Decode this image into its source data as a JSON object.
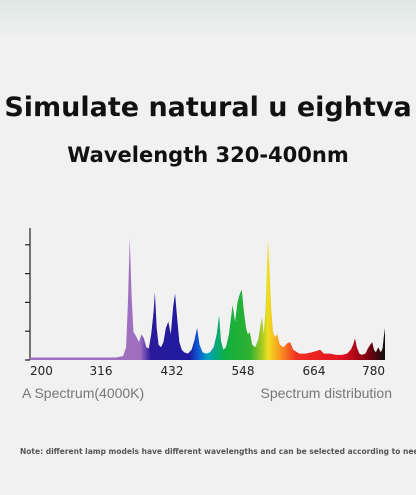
{
  "chart_data": {
    "type": "area",
    "title": "Simulate natural u eightva",
    "subtitle": "Wavelength 320-400nm",
    "caption_left": "A Spectrum(4000K)",
    "caption_right": "Spectrum distribution",
    "note": "Note: different lamp models have different wavelengths and can be selected according to needs",
    "x": [
      200,
      340,
      352,
      357,
      360,
      363,
      366,
      369,
      374,
      378,
      382,
      386,
      390,
      394,
      398,
      402,
      404,
      407,
      410,
      414,
      418,
      422,
      426,
      430,
      434,
      437,
      440,
      444,
      448,
      452,
      458,
      464,
      469,
      473,
      477,
      482,
      488,
      494,
      500,
      505,
      509,
      512,
      516,
      520,
      525,
      531,
      535,
      539,
      543,
      546,
      549,
      553,
      556,
      559,
      563,
      568,
      573,
      577,
      579,
      582,
      585,
      587,
      589,
      591,
      594,
      597,
      600,
      604,
      608,
      614,
      620,
      625,
      630,
      640,
      650,
      660,
      668,
      674,
      680,
      690,
      700,
      710,
      718,
      724,
      728,
      731,
      734,
      738,
      742,
      748,
      752,
      756,
      759,
      762,
      765,
      769,
      773,
      776,
      778,
      780
    ],
    "values": [
      2,
      2,
      3,
      10,
      45,
      95,
      50,
      22,
      18,
      14,
      20,
      17,
      10,
      9,
      20,
      38,
      53,
      25,
      12,
      10,
      14,
      25,
      30,
      20,
      42,
      52,
      35,
      14,
      8,
      6,
      5,
      8,
      16,
      25,
      12,
      6,
      5,
      6,
      10,
      20,
      35,
      15,
      8,
      10,
      20,
      43,
      30,
      45,
      52,
      55,
      40,
      25,
      20,
      22,
      12,
      10,
      16,
      28,
      33,
      20,
      40,
      70,
      94,
      75,
      40,
      22,
      18,
      20,
      12,
      10,
      13,
      14,
      8,
      5,
      5,
      6,
      7,
      8,
      5,
      5,
      4,
      4,
      5,
      8,
      12,
      17,
      10,
      5,
      4,
      5,
      9,
      12,
      14,
      8,
      6,
      10,
      6,
      9,
      18,
      25
    ],
    "xlim": [
      200,
      780
    ],
    "xticks": [
      200,
      316,
      432,
      548,
      664,
      780
    ],
    "ylim": [
      0,
      100
    ],
    "yticks": [
      0,
      22.5,
      45,
      67.5,
      90
    ]
  }
}
